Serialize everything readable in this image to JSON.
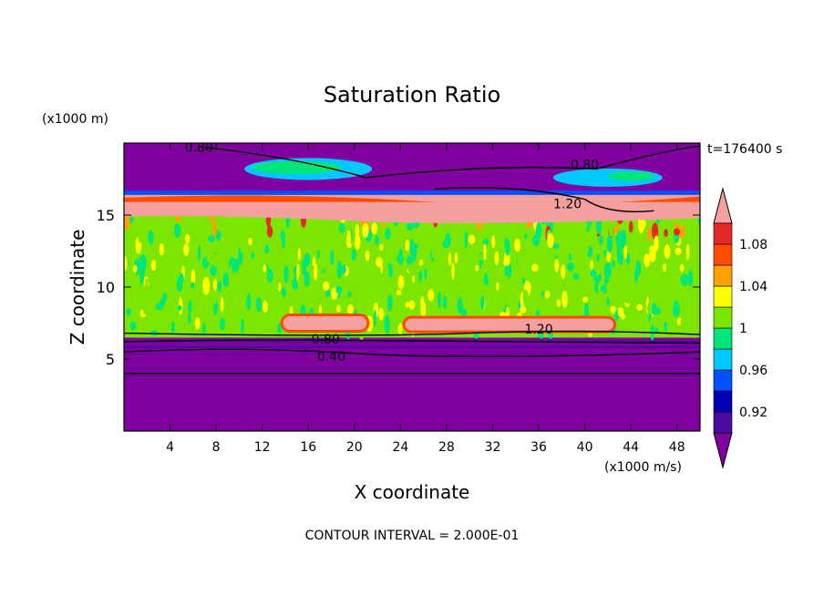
{
  "chart_data": {
    "type": "heatmap",
    "title": "Saturation Ratio",
    "xlabel": "X coordinate",
    "ylabel": "Z coordinate",
    "x_unit": "(x1000 m/s)",
    "y_unit": "(x1000 m)",
    "time_label": "t=176400 s",
    "footer": "CONTOUR INTERVAL = 2.000E-01",
    "xlim": [
      0,
      50
    ],
    "ylim": [
      0,
      20
    ],
    "x_ticks": [
      4,
      8,
      12,
      16,
      20,
      24,
      28,
      32,
      36,
      40,
      44,
      48
    ],
    "y_ticks": [
      5,
      10,
      15
    ],
    "colorbar": {
      "tick_labels": [
        "0.92",
        "0.96",
        "1",
        "1.04",
        "1.08"
      ],
      "tick_values": [
        0.92,
        0.96,
        1.0,
        1.04,
        1.08
      ],
      "levels": [
        0.9,
        0.92,
        0.94,
        0.96,
        0.98,
        1.0,
        1.02,
        1.04,
        1.06,
        1.08,
        1.1
      ],
      "colors": [
        "#8000a0",
        "#4b0aa0",
        "#0000b4",
        "#0050ff",
        "#00c8ff",
        "#00e678",
        "#7de600",
        "#ffff00",
        "#ffa000",
        "#ff4b00",
        "#e62828",
        "#f5a0a0"
      ]
    },
    "bands": [
      {
        "z": [
          0,
          6.5
        ],
        "value": 0.85
      },
      {
        "z": [
          6.5,
          15.0
        ],
        "value": 1.0
      },
      {
        "z": [
          15.0,
          16.5
        ],
        "value": 1.15
      },
      {
        "z": [
          16.5,
          20
        ],
        "value": 0.85
      }
    ],
    "contour_labels": [
      {
        "text": "0.80",
        "x": 6.5,
        "z": 19.7
      },
      {
        "text": "0.80",
        "x": 40.0,
        "z": 18.5
      },
      {
        "text": "1.20",
        "x": 38.5,
        "z": 15.8
      },
      {
        "text": "1.20",
        "x": 36.0,
        "z": 7.1
      },
      {
        "text": "0.80",
        "x": 17.5,
        "z": 6.4
      },
      {
        "text": "0.40",
        "x": 18.0,
        "z": 5.2
      }
    ]
  }
}
